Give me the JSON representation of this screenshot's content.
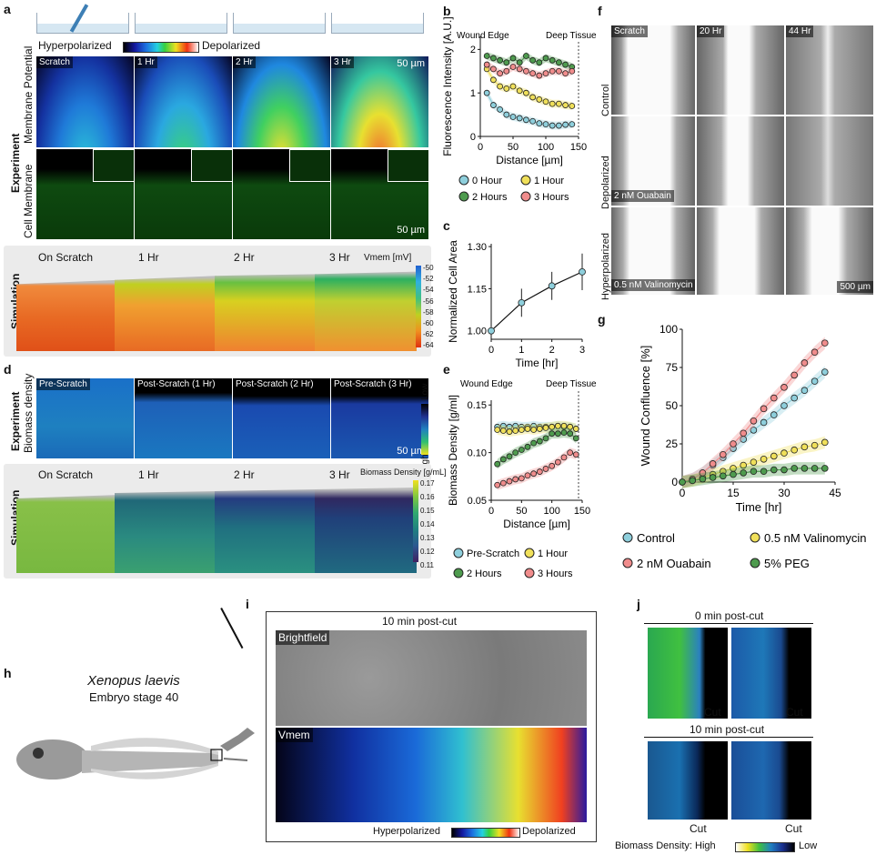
{
  "panel_labels": {
    "a": "a",
    "b": "b",
    "c": "c",
    "d": "d",
    "e": "e",
    "f": "f",
    "g": "g",
    "h": "h",
    "i": "i",
    "j": "j"
  },
  "a": {
    "colorbar_left": "Hyperpolarized",
    "colorbar_right": "Depolarized",
    "row_experiment": "Experiment",
    "row_membrane_potential": "Membrane Potential",
    "row_cell_membrane": "Cell Membrane",
    "tiles": [
      "Scratch",
      "1 Hr",
      "2 Hr",
      "3 Hr"
    ],
    "scalebar_top": "50 µm",
    "scalebar_bottom": "50 µm",
    "sim_title": "Simulation",
    "sim_tiles": [
      "On Scratch",
      "1 Hr",
      "2 Hr",
      "3 Hr"
    ],
    "vmem_label": "Vmem [mV]",
    "vmem_ticks": [
      "-50",
      "-52",
      "-54",
      "-56",
      "-58",
      "-60",
      "-62",
      "-64"
    ]
  },
  "d": {
    "row_experiment": "Experiment",
    "row_biomass": "Biomass density",
    "tiles": [
      "Pre-Scratch",
      "Post-Scratch (1 Hr)",
      "Post-Scratch (2 Hr)",
      "Post-Scratch (3 Hr)"
    ],
    "low": "Low",
    "high": "High",
    "scalebar": "50 µm",
    "sim_title": "Simulation",
    "sim_tiles": [
      "On Scratch",
      "1 Hr",
      "2 Hr",
      "3 Hr"
    ],
    "bd_label": "Biomass Density [g/mL]",
    "bd_ticks": [
      "0.17",
      "0.16",
      "0.15",
      "0.14",
      "0.13",
      "0.12",
      "0.11"
    ]
  },
  "f": {
    "cols": [
      "Scratch",
      "20 Hr",
      "44 Hr"
    ],
    "rows": [
      "Control",
      "Depolarized",
      "Hyperpolarized"
    ],
    "drug_depol": "2 nM Ouabain",
    "drug_hyper": "0.5 nM Valinomycin",
    "scalebar": "500 µm"
  },
  "h": {
    "species": "Xenopus laevis",
    "stage": "Embryo stage 40"
  },
  "i": {
    "title": "10 min post-cut",
    "brightfield": "Brightfield",
    "vmem": "Vmem",
    "hyper": "Hyperpolarized",
    "depol": "Depolarized"
  },
  "j": {
    "title1": "0 min post-cut",
    "title2": "10 min post-cut",
    "cut": "Cut",
    "legend_prefix": "Biomass Density: High",
    "legend_low": "Low"
  },
  "chart_data": [
    {
      "id": "b",
      "type": "line",
      "xlabel": "Distance [µm]",
      "ylabel": "Fluorescence Intensity [A.U.]",
      "xlim": [
        0,
        150
      ],
      "ylim": [
        0,
        2.3
      ],
      "xticks": [
        0,
        50,
        100,
        150
      ],
      "yticks": [
        0,
        1,
        2
      ],
      "annotations": [
        "Wound Edge",
        "Deep Tissue"
      ],
      "x": [
        10,
        20,
        30,
        40,
        50,
        60,
        70,
        80,
        90,
        100,
        110,
        120,
        130,
        140
      ],
      "series": [
        {
          "name": "0 Hour",
          "color": "#8ecfdc",
          "values": [
            1.0,
            0.72,
            0.62,
            0.5,
            0.45,
            0.42,
            0.38,
            0.35,
            0.3,
            0.28,
            0.25,
            0.25,
            0.27,
            0.28
          ]
        },
        {
          "name": "1 Hour",
          "color": "#f0e05a",
          "values": [
            1.55,
            1.3,
            1.15,
            1.1,
            1.15,
            1.05,
            1.0,
            0.9,
            0.85,
            0.8,
            0.75,
            0.75,
            0.72,
            0.7
          ]
        },
        {
          "name": "2 Hours",
          "color": "#4e9b4e",
          "values": [
            1.85,
            1.8,
            1.75,
            1.7,
            1.8,
            1.7,
            1.85,
            1.75,
            1.7,
            1.8,
            1.75,
            1.7,
            1.65,
            1.6
          ]
        },
        {
          "name": "3 Hours",
          "color": "#f08c8c",
          "values": [
            1.65,
            1.55,
            1.45,
            1.5,
            1.6,
            1.55,
            1.5,
            1.45,
            1.4,
            1.45,
            1.5,
            1.5,
            1.45,
            1.5
          ]
        }
      ]
    },
    {
      "id": "c",
      "type": "line",
      "xlabel": "Time [hr]",
      "ylabel": "Normalized Cell Area",
      "xlim": [
        0,
        3
      ],
      "ylim": [
        0.97,
        1.31
      ],
      "xticks": [
        0,
        1,
        2,
        3
      ],
      "yticks": [
        1.0,
        1.15,
        1.3
      ],
      "x": [
        0,
        1,
        2,
        3
      ],
      "series": [
        {
          "color": "#8ecfdc",
          "values": [
            1.0,
            1.1,
            1.16,
            1.21
          ],
          "error": [
            0.0,
            0.05,
            0.05,
            0.065
          ]
        }
      ]
    },
    {
      "id": "e",
      "type": "line",
      "xlabel": "Distance [µm]",
      "ylabel": "Biomass Density [g/ml]",
      "xlim": [
        0,
        150
      ],
      "ylim": [
        0.05,
        0.155
      ],
      "xticks": [
        0,
        50,
        100,
        150
      ],
      "yticks": [
        0.05,
        0.1,
        0.15
      ],
      "annotations": [
        "Wound Edge",
        "Deep Tissue"
      ],
      "x": [
        10,
        20,
        30,
        40,
        50,
        60,
        70,
        80,
        90,
        100,
        110,
        120,
        130,
        140
      ],
      "series": [
        {
          "name": "Pre-Scratch",
          "color": "#8ecfdc",
          "values": [
            0.127,
            0.128,
            0.127,
            0.128,
            0.127,
            0.127,
            0.128,
            0.127,
            0.127,
            0.127,
            0.128,
            0.127,
            0.127,
            0.125
          ]
        },
        {
          "name": "1 Hour",
          "color": "#f0e05a",
          "values": [
            0.124,
            0.123,
            0.122,
            0.123,
            0.124,
            0.125,
            0.124,
            0.125,
            0.126,
            0.127,
            0.128,
            0.128,
            0.127,
            0.125
          ]
        },
        {
          "name": "2 Hours",
          "color": "#4e9b4e",
          "values": [
            0.088,
            0.093,
            0.096,
            0.1,
            0.103,
            0.106,
            0.11,
            0.112,
            0.115,
            0.12,
            0.12,
            0.121,
            0.12,
            0.115
          ]
        },
        {
          "name": "3 Hours",
          "color": "#f08c8c",
          "values": [
            0.066,
            0.068,
            0.07,
            0.072,
            0.073,
            0.076,
            0.078,
            0.08,
            0.083,
            0.086,
            0.09,
            0.095,
            0.1,
            0.098
          ]
        }
      ]
    },
    {
      "id": "g",
      "type": "line",
      "xlabel": "Time [hr]",
      "ylabel": "Wound Confluence [%]",
      "xlim": [
        0,
        45
      ],
      "ylim": [
        0,
        100
      ],
      "xticks": [
        0,
        15,
        30,
        45
      ],
      "yticks": [
        0,
        25,
        50,
        75,
        100
      ],
      "x": [
        0,
        3,
        6,
        9,
        12,
        15,
        18,
        21,
        24,
        27,
        30,
        33,
        36,
        39,
        42
      ],
      "series": [
        {
          "name": "Control",
          "color": "#8ecfdc",
          "values": [
            0,
            2,
            6,
            11,
            16,
            22,
            28,
            34,
            39,
            44,
            50,
            55,
            60,
            66,
            72
          ]
        },
        {
          "name": "0.5 nM Valinomycin",
          "color": "#f0e05a",
          "values": [
            0,
            1,
            3,
            5,
            7,
            9,
            11,
            13,
            15,
            17,
            19,
            21,
            23,
            24,
            26
          ]
        },
        {
          "name": "2 nM Ouabain",
          "color": "#f08c8c",
          "values": [
            0,
            2,
            6,
            12,
            18,
            25,
            32,
            40,
            48,
            55,
            62,
            70,
            78,
            85,
            91
          ]
        },
        {
          "name": "5% PEG",
          "color": "#4e9b4e",
          "values": [
            0,
            1,
            2,
            3,
            4,
            5,
            6,
            7,
            7,
            8,
            8,
            9,
            9,
            9,
            9
          ]
        }
      ]
    }
  ]
}
